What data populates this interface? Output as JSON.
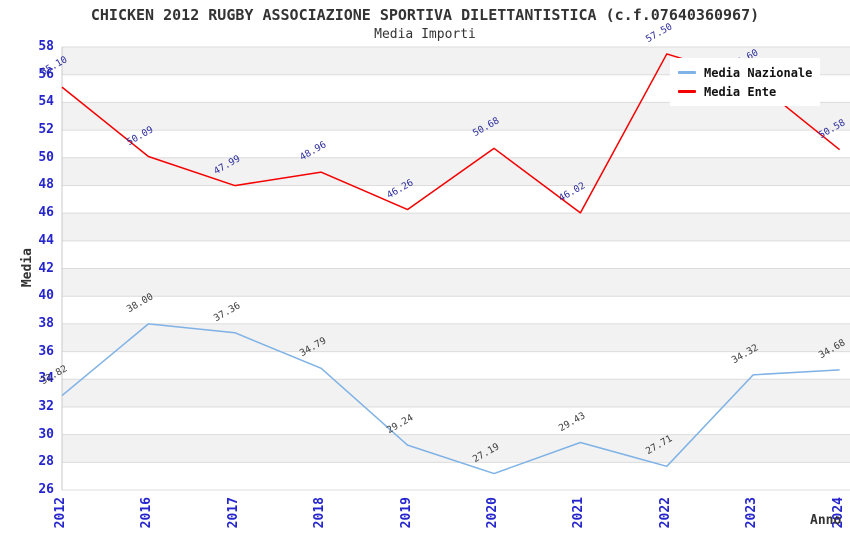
{
  "chart_data": {
    "type": "line",
    "title": "CHICKEN 2012 RUGBY ASSOCIAZIONE SPORTIVA DILETTANTISTICA (c.f.07640360967)",
    "subtitle": "Media Importi",
    "categories": [
      "2012",
      "2016",
      "2017",
      "2018",
      "2019",
      "2020",
      "2021",
      "2022",
      "2023",
      "2024"
    ],
    "xlabel": "Anno",
    "ylabel": "Media",
    "ylim": [
      26,
      58
    ],
    "yticks": [
      26,
      28,
      30,
      32,
      34,
      36,
      38,
      40,
      42,
      44,
      46,
      48,
      50,
      52,
      54,
      56,
      58
    ],
    "grid": true,
    "banded_background": true,
    "legend_position": "top-right",
    "series": [
      {
        "name": "Media Nazionale",
        "color": "#7fb2e5",
        "label_color": "#3c3c3c",
        "values": [
          32.82,
          38.0,
          37.36,
          34.79,
          29.24,
          27.19,
          29.43,
          27.71,
          34.32,
          34.68
        ],
        "labels": [
          "32.82",
          "38.00",
          "37.36",
          "34.79",
          "29.24",
          "27.19",
          "29.43",
          "27.71",
          "34.32",
          "34.68"
        ]
      },
      {
        "name": "Media Ente",
        "color": "#f40000",
        "label_color": "#2d2d9e",
        "values": [
          55.1,
          50.09,
          47.99,
          48.96,
          46.26,
          50.68,
          46.02,
          57.5,
          55.6,
          50.58
        ],
        "labels": [
          "55.10",
          "50.09",
          "47.99",
          "48.96",
          "46.26",
          "50.68",
          "46.02",
          "57.50",
          "55.60",
          "50.58"
        ],
        "occluded_label_index": 8,
        "occluded_label_note": "2023 label hidden behind legend; value estimated from line position"
      }
    ]
  },
  "legend": {
    "items": [
      {
        "label": "Media Nazionale",
        "color": "#7fb2e5"
      },
      {
        "label": "Media Ente",
        "color": "#f40000"
      }
    ]
  },
  "colors": {
    "background": "#ffffff",
    "band": "#f2f2f2",
    "grid": "#dcdcdc",
    "spine": "#c8c8c8",
    "axis_tick": "#2525cd",
    "title": "#333333",
    "legend_text": "#111111"
  }
}
